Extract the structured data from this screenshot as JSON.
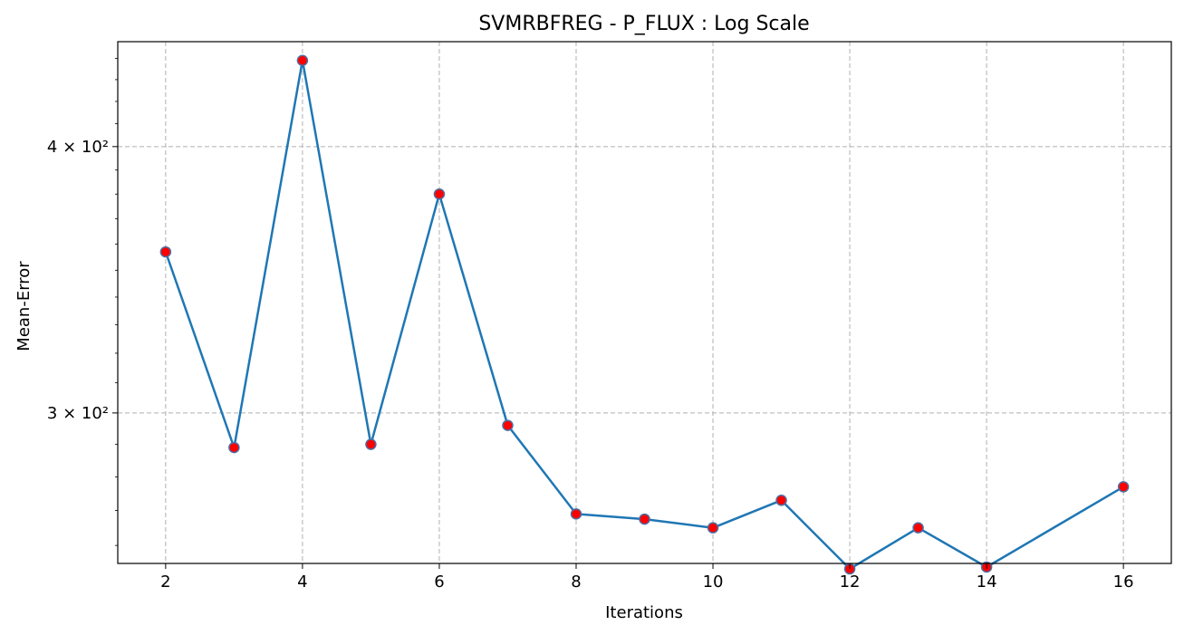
{
  "chart_data": {
    "type": "line",
    "title": "SVMRBFREG - P_FLUX : Log Scale",
    "xlabel": "Iterations",
    "ylabel": "Mean-Error",
    "yscale": "log",
    "grid": true,
    "xlim": [
      1.3,
      16.7
    ],
    "ylim": [
      255,
      448
    ],
    "x_ticks": [
      2,
      4,
      6,
      8,
      10,
      12,
      14,
      16
    ],
    "y_ticks": [
      {
        "value": 300,
        "label": "3 × 10²"
      },
      {
        "value": 400,
        "label": "4 × 10²"
      }
    ],
    "series": [
      {
        "x": [
          2,
          3,
          4,
          5,
          6,
          7,
          8,
          9,
          10,
          11,
          12,
          13,
          14,
          16
        ],
        "y": [
          357,
          289,
          439,
          290,
          380,
          296,
          269,
          267.5,
          265,
          273,
          253.5,
          265,
          254,
          277
        ],
        "line_color": "#1f77b4",
        "marker_fill": "#ff0000",
        "marker_edge": "#4d6fa3"
      }
    ]
  }
}
